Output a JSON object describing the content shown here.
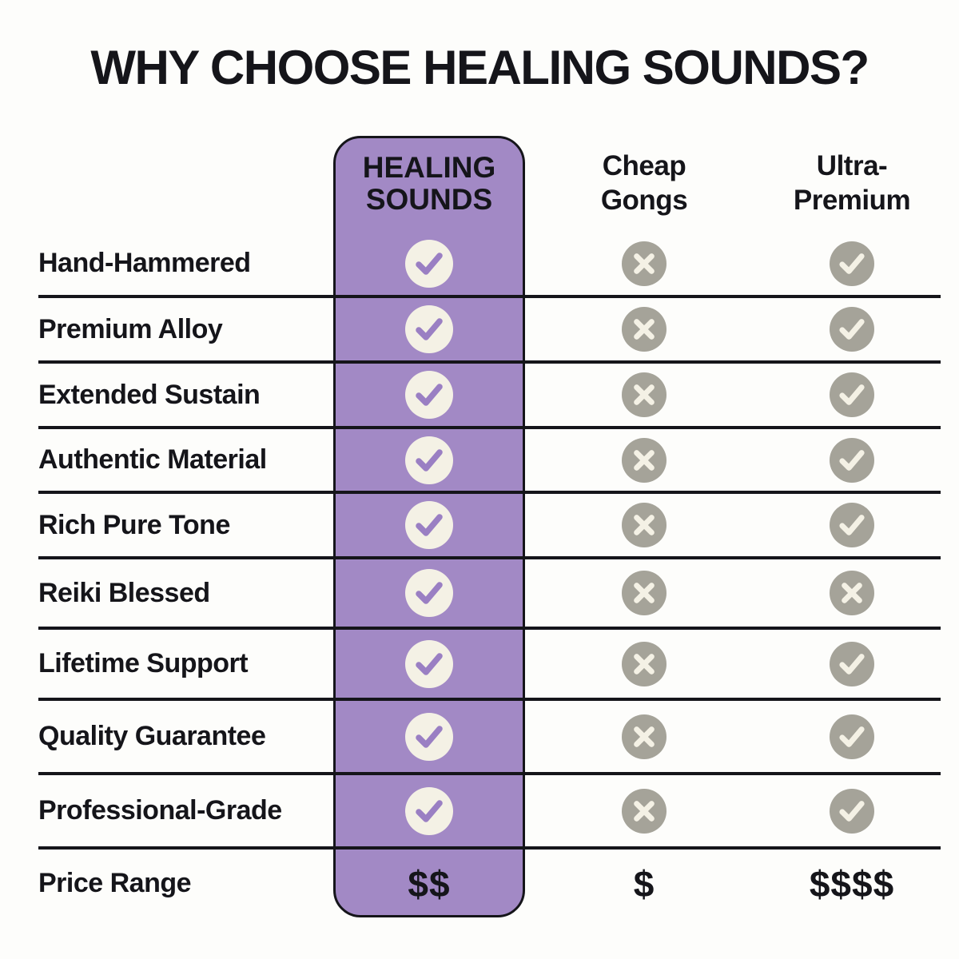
{
  "title": "WHY CHOOSE HEALING SOUNDS?",
  "chart_data": {
    "type": "table",
    "title": "WHY CHOOSE HEALING SOUNDS?",
    "columns": [
      {
        "key": "healing_sounds",
        "lines": [
          "HEALING",
          "SOUNDS"
        ],
        "label": "HEALING SOUNDS",
        "highlighted": true
      },
      {
        "key": "cheap_gongs",
        "lines": [
          "Cheap",
          "Gongs"
        ],
        "label": "Cheap Gongs",
        "highlighted": false
      },
      {
        "key": "ultra_premium",
        "lines": [
          "Ultra-",
          "Premium"
        ],
        "label": "Ultra-Premium",
        "highlighted": false
      }
    ],
    "feature_rows": [
      {
        "label": "Hand-Hammered",
        "values": [
          "check",
          "cross",
          "check"
        ]
      },
      {
        "label": "Premium Alloy",
        "values": [
          "check",
          "cross",
          "check"
        ]
      },
      {
        "label": "Extended Sustain",
        "values": [
          "check",
          "cross",
          "check"
        ]
      },
      {
        "label": "Authentic Material",
        "values": [
          "check",
          "cross",
          "check"
        ]
      },
      {
        "label": "Rich Pure Tone",
        "values": [
          "check",
          "cross",
          "check"
        ]
      },
      {
        "label": "Reiki Blessed",
        "values": [
          "check",
          "cross",
          "cross"
        ]
      },
      {
        "label": "Lifetime Support",
        "values": [
          "check",
          "cross",
          "check"
        ]
      },
      {
        "label": "Quality Guarantee",
        "values": [
          "check",
          "cross",
          "check"
        ]
      },
      {
        "label": "Professional-Grade",
        "values": [
          "check",
          "cross",
          "check"
        ]
      }
    ],
    "price_row": {
      "label": "Price Range",
      "values": [
        "$$",
        "$",
        "$$$$"
      ]
    },
    "symbols": {
      "check": "included",
      "cross": "not-included"
    }
  },
  "colors": {
    "background": "#fdfdfb",
    "ink": "#15151a",
    "highlight_column": "#a289c5",
    "check_circle_on_highlight": "#f4f1e5",
    "checkmark_on_highlight": "#9a7fc3",
    "neutral_circle": "#a5a399",
    "mark_on_neutral": "#f4f1e5"
  }
}
